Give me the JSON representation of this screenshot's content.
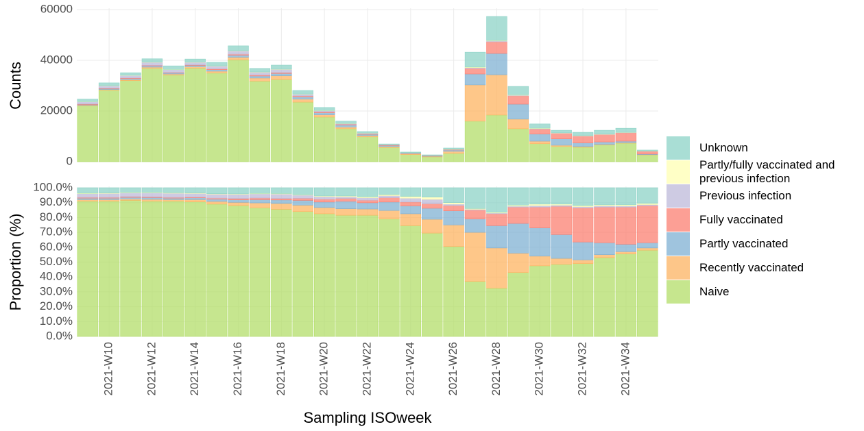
{
  "chart_data": [
    {
      "type": "stacked_bar",
      "y_label": "Counts",
      "ylim": [
        0,
        60000
      ],
      "yticks": [
        0,
        20000,
        40000,
        60000
      ],
      "grid": true,
      "legend": "right",
      "series": [
        {
          "name": "Naive",
          "color": "#b3de69",
          "values": [
            22000,
            28200,
            32000,
            36800,
            34200,
            36900,
            35000,
            40200,
            31800,
            32400,
            23500,
            17600,
            13000,
            9800,
            5600,
            2800,
            1900,
            3300,
            16000,
            18400,
            13000,
            7100,
            6000,
            5700,
            6600,
            7300,
            2700
          ]
        },
        {
          "name": "Recently vaccinated",
          "color": "#fdb462",
          "values": [
            300,
            300,
            400,
            500,
            400,
            600,
            700,
            1000,
            1200,
            1500,
            1200,
            900,
            700,
            500,
            400,
            300,
            250,
            800,
            14300,
            15900,
            3800,
            1000,
            500,
            300,
            200,
            200,
            100
          ]
        },
        {
          "name": "Partly vaccinated",
          "color": "#80b1d3",
          "values": [
            300,
            300,
            400,
            500,
            400,
            500,
            600,
            800,
            800,
            900,
            900,
            800,
            800,
            500,
            400,
            200,
            200,
            500,
            4300,
            8400,
            5900,
            2800,
            2500,
            1400,
            1000,
            600,
            200
          ]
        },
        {
          "name": "Fully vaccinated",
          "color": "#fb8072",
          "values": [
            200,
            200,
            200,
            200,
            200,
            200,
            300,
            400,
            400,
            400,
            400,
            400,
            300,
            200,
            200,
            100,
            80,
            200,
            2200,
            4600,
            3300,
            2000,
            2200,
            2700,
            2900,
            3300,
            1100
          ]
        },
        {
          "name": "Previous infection",
          "color": "#bebada",
          "values": [
            800,
            900,
            1000,
            1200,
            1100,
            1000,
            1100,
            1300,
            1100,
            1200,
            600,
            400,
            200,
            200,
            100,
            100,
            80,
            50,
            300,
            300,
            200,
            150,
            100,
            100,
            100,
            100,
            50
          ]
        },
        {
          "name": "Partly/fully vaccinated and previous infection",
          "color": "#ffffb3",
          "values": [
            100,
            100,
            100,
            100,
            100,
            100,
            100,
            100,
            100,
            100,
            100,
            100,
            100,
            100,
            50,
            50,
            40,
            50,
            200,
            200,
            200,
            150,
            100,
            100,
            100,
            100,
            50
          ]
        },
        {
          "name": "Unknown",
          "color": "#8dd3c7",
          "values": [
            1000,
            1100,
            1000,
            1300,
            1400,
            1200,
            1400,
            1900,
            1400,
            1600,
            1400,
            1200,
            900,
            600,
            250,
            250,
            150,
            500,
            5900,
            9500,
            3300,
            1700,
            1000,
            1300,
            1500,
            1600,
            400
          ]
        }
      ]
    },
    {
      "type": "stacked_bar",
      "y_label": "Proportion (%)",
      "x_label": "Sampling ISOweek",
      "ylim": [
        0,
        100
      ],
      "grid": true,
      "yticks": [
        {
          "value": 0,
          "label": "0.0%"
        },
        {
          "value": 10,
          "label": "10.0%"
        },
        {
          "value": 20,
          "label": "20.0%"
        },
        {
          "value": 30,
          "label": "30.0%"
        },
        {
          "value": 40,
          "label": "40.0%"
        },
        {
          "value": 50,
          "label": "50.0%"
        },
        {
          "value": 60,
          "label": "60.0%"
        },
        {
          "value": 70,
          "label": "70.0%"
        },
        {
          "value": 80,
          "label": "80.0%"
        },
        {
          "value": 90,
          "label": "90.0%"
        },
        {
          "value": 100,
          "label": "100.0%"
        }
      ],
      "categories": [
        null,
        "2021-W10",
        null,
        "2021-W12",
        null,
        "2021-W14",
        null,
        "2021-W16",
        null,
        "2021-W18",
        null,
        "2021-W20",
        null,
        "2021-W22",
        null,
        "2021-W24",
        null,
        "2021-W26",
        null,
        "2021-W28",
        null,
        "2021-W30",
        null,
        "2021-W32",
        null,
        "2021-W34",
        null
      ],
      "series": [
        {
          "values": [
            91,
            91,
            91.5,
            91,
            91,
            90.5,
            89,
            88,
            86.5,
            85.5,
            84,
            82.5,
            81.5,
            81.5,
            79,
            74.5,
            69.5,
            60.5,
            37,
            32.5,
            43,
            47.5,
            48.5,
            49,
            53,
            55.5,
            58
          ]
        },
        {
          "values": [
            1,
            1,
            1,
            1.2,
            1,
            1.5,
            1.8,
            2.2,
            3.3,
            3.9,
            4.3,
            4.2,
            4.4,
            4.2,
            5.7,
            8,
            9.3,
            14.5,
            33,
            27,
            13,
            6.5,
            4,
            2.5,
            2,
            1.5,
            1.5
          ]
        },
        {
          "values": [
            1,
            1,
            1,
            1.2,
            1,
            1.2,
            1.5,
            1.7,
            2.2,
            2.4,
            3.2,
            3.7,
            5,
            4.2,
            5.7,
            5.3,
            7.4,
            9.5,
            9,
            15,
            20,
            19,
            16,
            12,
            8,
            5,
            3.5
          ]
        },
        {
          "values": [
            0.5,
            0.5,
            0.5,
            0.5,
            0.5,
            0.5,
            0.7,
            0.9,
            1.1,
            1,
            1.4,
            1.9,
            1.9,
            1.7,
            2.9,
            2.6,
            3,
            3.5,
            6,
            8,
            11,
            14,
            19,
            23,
            24,
            25,
            25
          ]
        },
        {
          "values": [
            2.5,
            2.7,
            2.5,
            2.6,
            2.8,
            2.5,
            2.7,
            2.8,
            2.8,
            3,
            2.1,
            1.8,
            1.2,
            1.7,
            1.4,
            2.6,
            3,
            1,
            0.5,
            0.5,
            0.6,
            1,
            0.8,
            0.8,
            0.8,
            0.7,
            0.7
          ]
        },
        {
          "values": [
            0.3,
            0.3,
            0.3,
            0.3,
            0.3,
            0.3,
            0.3,
            0.3,
            0.3,
            0.3,
            0.3,
            0.4,
            0.5,
            0.6,
            0.7,
            1.2,
            1.5,
            1,
            0.5,
            0.5,
            0.7,
            1,
            0.7,
            0.7,
            0.7,
            0.8,
            0.8
          ]
        },
        {
          "values": [
            3.7,
            3.5,
            3.2,
            3.2,
            3.4,
            3.5,
            4,
            4.1,
            3.8,
            3.9,
            4.7,
            5.5,
            5.5,
            6.1,
            4.6,
            5.8,
            6.3,
            10,
            14,
            16.5,
            11.7,
            11,
            11,
            12,
            11.5,
            11.5,
            10.5
          ]
        }
      ]
    }
  ]
}
